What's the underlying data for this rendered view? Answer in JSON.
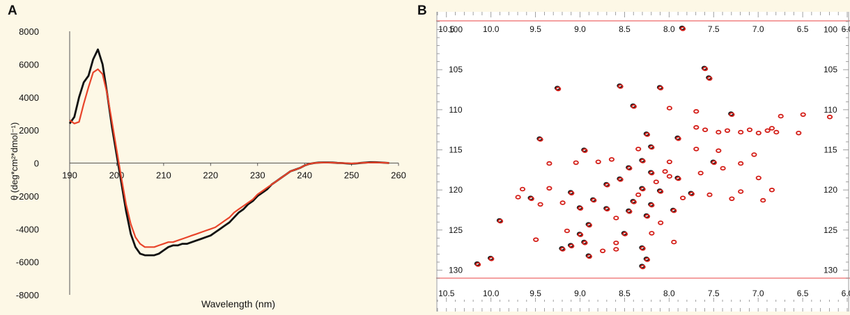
{
  "panel_labels": {
    "a": "A",
    "b": "B"
  },
  "chart_data": [
    {
      "type": "line",
      "panel": "A",
      "xlabel": "Wavelength (nm)",
      "ylabel": "θ (deg*cm²*dmol⁻¹)",
      "xlim": [
        190,
        260
      ],
      "ylim": [
        -8000,
        8000
      ],
      "x_ticks": [
        190,
        200,
        210,
        220,
        230,
        240,
        250,
        260
      ],
      "y_ticks": [
        8000,
        6000,
        4000,
        2000,
        0,
        -2000,
        -4000,
        -6000,
        -8000
      ],
      "grid": false,
      "colors": {
        "black_series": "#111111",
        "red_series": "#e8442a"
      },
      "series": [
        {
          "color_key": "black_series",
          "x": [
            190,
            191,
            192,
            193,
            194,
            195,
            196,
            197,
            198,
            199,
            200,
            201,
            202,
            203,
            204,
            205,
            206,
            207,
            208,
            209,
            210,
            211,
            212,
            213,
            214,
            215,
            216,
            217,
            218,
            219,
            220,
            221,
            222,
            223,
            224,
            225,
            226,
            227,
            228,
            229,
            230,
            231,
            232,
            233,
            234,
            235,
            236,
            237,
            238,
            239,
            240,
            241,
            242,
            243,
            244,
            245,
            246,
            247,
            248,
            249,
            250,
            251,
            252,
            253,
            254,
            255,
            256,
            257,
            258
          ],
          "values": [
            2400,
            2800,
            4000,
            4900,
            5300,
            6300,
            6900,
            6000,
            4200,
            2200,
            500,
            -1200,
            -2900,
            -4300,
            -5100,
            -5500,
            -5600,
            -5600,
            -5600,
            -5500,
            -5300,
            -5100,
            -5000,
            -5000,
            -4900,
            -4900,
            -4800,
            -4700,
            -4600,
            -4500,
            -4400,
            -4200,
            -4000,
            -3800,
            -3600,
            -3300,
            -3000,
            -2800,
            -2500,
            -2300,
            -2000,
            -1800,
            -1600,
            -1300,
            -1100,
            -900,
            -700,
            -500,
            -400,
            -300,
            -150,
            -50,
            0,
            30,
            40,
            40,
            30,
            10,
            0,
            -20,
            -40,
            -20,
            10,
            30,
            50,
            50,
            40,
            20,
            0
          ]
        },
        {
          "color_key": "red_series",
          "x": [
            190,
            191,
            192,
            193,
            194,
            195,
            196,
            197,
            198,
            199,
            200,
            201,
            202,
            203,
            204,
            205,
            206,
            207,
            208,
            209,
            210,
            211,
            212,
            213,
            214,
            215,
            216,
            217,
            218,
            219,
            220,
            221,
            222,
            223,
            224,
            225,
            226,
            227,
            228,
            229,
            230,
            231,
            232,
            233,
            234,
            235,
            236,
            237,
            238,
            239,
            240,
            241,
            242,
            243,
            244,
            245,
            246,
            247,
            248,
            249,
            250,
            251,
            252,
            253,
            254,
            255,
            256,
            257,
            258
          ],
          "values": [
            2600,
            2400,
            2500,
            3600,
            4600,
            5500,
            5700,
            5400,
            4200,
            2500,
            800,
            -900,
            -2500,
            -3700,
            -4500,
            -4900,
            -5100,
            -5100,
            -5100,
            -5000,
            -4900,
            -4800,
            -4800,
            -4700,
            -4600,
            -4500,
            -4400,
            -4300,
            -4200,
            -4100,
            -4000,
            -3900,
            -3700,
            -3500,
            -3300,
            -3000,
            -2800,
            -2600,
            -2400,
            -2200,
            -1900,
            -1700,
            -1500,
            -1300,
            -1100,
            -900,
            -700,
            -500,
            -400,
            -300,
            -150,
            -50,
            0,
            20,
            30,
            30,
            20,
            10,
            0,
            -10,
            -20,
            -10,
            10,
            20,
            30,
            40,
            30,
            20,
            0
          ]
        }
      ]
    },
    {
      "type": "scatter",
      "panel": "B",
      "x_reversed": true,
      "y_reversed": true,
      "xlim": [
        10.6,
        6.0
      ],
      "ylim": [
        99,
        131
      ],
      "x_ticks": [
        "10.5",
        "10.0",
        "9.5",
        "9.0",
        "8.5",
        "8.0",
        "7.5",
        "7.0",
        "6.5",
        "6.0"
      ],
      "y_ticks": [
        "100",
        "105",
        "110",
        "115",
        "120",
        "125",
        "130"
      ],
      "colors": {
        "black_peaks": "#1c1c1c",
        "red_peaks": "#d4201a",
        "frame_line": "#f08080"
      },
      "series": [
        {
          "color_key": "black_peaks",
          "points": [
            [
              7.85,
              99.8
            ],
            [
              7.6,
              104.8
            ],
            [
              7.55,
              106
            ],
            [
              9.25,
              107.3
            ],
            [
              8.55,
              107
            ],
            [
              8.4,
              109.5
            ],
            [
              8.1,
              107.2
            ],
            [
              7.3,
              110.5
            ],
            [
              8.25,
              113
            ],
            [
              7.9,
              113.5
            ],
            [
              8.2,
              114.6
            ],
            [
              9.45,
              113.6
            ],
            [
              8.95,
              115
            ],
            [
              7.5,
              116.5
            ],
            [
              8.45,
              117.2
            ],
            [
              8.2,
              117.8
            ],
            [
              8.55,
              118.6
            ],
            [
              7.9,
              118.5
            ],
            [
              8.7,
              119.3
            ],
            [
              8.3,
              119.8
            ],
            [
              8.1,
              120.1
            ],
            [
              7.75,
              120.4
            ],
            [
              9.1,
              120.3
            ],
            [
              8.85,
              121.2
            ],
            [
              8.4,
              121.4
            ],
            [
              8.2,
              121.8
            ],
            [
              7.95,
              122.5
            ],
            [
              9.0,
              122.2
            ],
            [
              8.7,
              122.3
            ],
            [
              8.45,
              122.6
            ],
            [
              8.25,
              123.2
            ],
            [
              8.9,
              124.3
            ],
            [
              9.0,
              125.5
            ],
            [
              8.5,
              125.4
            ],
            [
              8.95,
              126.5
            ],
            [
              9.1,
              126.9
            ],
            [
              8.3,
              127.2
            ],
            [
              9.2,
              127.3
            ],
            [
              8.9,
              128.2
            ],
            [
              8.25,
              128.6
            ],
            [
              8.3,
              129.5
            ],
            [
              10.15,
              129.2
            ],
            [
              10.0,
              128.5
            ],
            [
              9.9,
              123.8
            ],
            [
              9.55,
              121
            ],
            [
              8.3,
              116.3
            ]
          ]
        },
        {
          "color_key": "red_peaks",
          "points": [
            [
              7.85,
              99.9
            ],
            [
              7.6,
              104.9
            ],
            [
              7.55,
              106.1
            ],
            [
              9.25,
              107.4
            ],
            [
              8.55,
              107.1
            ],
            [
              8.1,
              107.3
            ],
            [
              8.4,
              109.6
            ],
            [
              8.0,
              109.8
            ],
            [
              7.7,
              110.2
            ],
            [
              7.3,
              110.6
            ],
            [
              6.75,
              110.8
            ],
            [
              6.5,
              110.6
            ],
            [
              6.2,
              110.9
            ],
            [
              7.7,
              112.2
            ],
            [
              7.6,
              112.5
            ],
            [
              7.45,
              112.8
            ],
            [
              7.35,
              112.6
            ],
            [
              7.2,
              112.8
            ],
            [
              7.1,
              112.5
            ],
            [
              7.0,
              112.9
            ],
            [
              6.9,
              112.6
            ],
            [
              6.85,
              112.3
            ],
            [
              6.8,
              112.8
            ],
            [
              6.55,
              112.9
            ],
            [
              8.25,
              113.1
            ],
            [
              7.9,
              113.6
            ],
            [
              9.45,
              113.7
            ],
            [
              8.2,
              114.7
            ],
            [
              8.95,
              115.1
            ],
            [
              8.35,
              114.9
            ],
            [
              7.7,
              114.9
            ],
            [
              7.45,
              115.1
            ],
            [
              7.05,
              115.6
            ],
            [
              7.5,
              116.6
            ],
            [
              7.2,
              116.7
            ],
            [
              8.0,
              116.5
            ],
            [
              8.65,
              116.2
            ],
            [
              8.8,
              116.5
            ],
            [
              9.05,
              116.6
            ],
            [
              9.35,
              116.7
            ],
            [
              7.4,
              117.3
            ],
            [
              8.45,
              117.3
            ],
            [
              8.2,
              117.9
            ],
            [
              8.05,
              117.7
            ],
            [
              7.65,
              117.9
            ],
            [
              8.55,
              118.7
            ],
            [
              7.9,
              118.6
            ],
            [
              8.0,
              118.3
            ],
            [
              7.0,
              118.5
            ],
            [
              8.7,
              119.4
            ],
            [
              8.3,
              119.9
            ],
            [
              8.1,
              120.2
            ],
            [
              7.75,
              120.5
            ],
            [
              9.1,
              120.4
            ],
            [
              9.35,
              119.8
            ],
            [
              9.65,
              119.9
            ],
            [
              7.55,
              120.6
            ],
            [
              7.2,
              120.2
            ],
            [
              6.85,
              120.0
            ],
            [
              8.85,
              121.3
            ],
            [
              8.4,
              121.5
            ],
            [
              8.2,
              121.9
            ],
            [
              9.55,
              121.1
            ],
            [
              9.7,
              120.9
            ],
            [
              7.3,
              121.1
            ],
            [
              6.95,
              121.3
            ],
            [
              7.95,
              122.6
            ],
            [
              9.0,
              122.3
            ],
            [
              8.7,
              122.4
            ],
            [
              8.45,
              122.7
            ],
            [
              9.2,
              121.6
            ],
            [
              9.45,
              121.8
            ],
            [
              8.25,
              123.3
            ],
            [
              8.6,
              123.5
            ],
            [
              9.9,
              123.9
            ],
            [
              8.9,
              124.4
            ],
            [
              8.1,
              124.1
            ],
            [
              9.0,
              125.6
            ],
            [
              8.5,
              125.5
            ],
            [
              8.2,
              125.4
            ],
            [
              9.15,
              125.1
            ],
            [
              8.95,
              126.6
            ],
            [
              9.5,
              126.2
            ],
            [
              7.95,
              126.5
            ],
            [
              8.6,
              126.6
            ],
            [
              9.1,
              127.0
            ],
            [
              8.3,
              127.3
            ],
            [
              8.75,
              127.6
            ],
            [
              8.6,
              127.4
            ],
            [
              9.2,
              127.4
            ],
            [
              8.9,
              128.3
            ],
            [
              8.25,
              128.7
            ],
            [
              8.3,
              129.6
            ],
            [
              10.15,
              129.3
            ],
            [
              10.0,
              128.6
            ],
            [
              8.3,
              116.4
            ],
            [
              7.85,
              121.0
            ],
            [
              8.35,
              120.6
            ],
            [
              8.15,
              119.0
            ]
          ]
        }
      ]
    }
  ]
}
